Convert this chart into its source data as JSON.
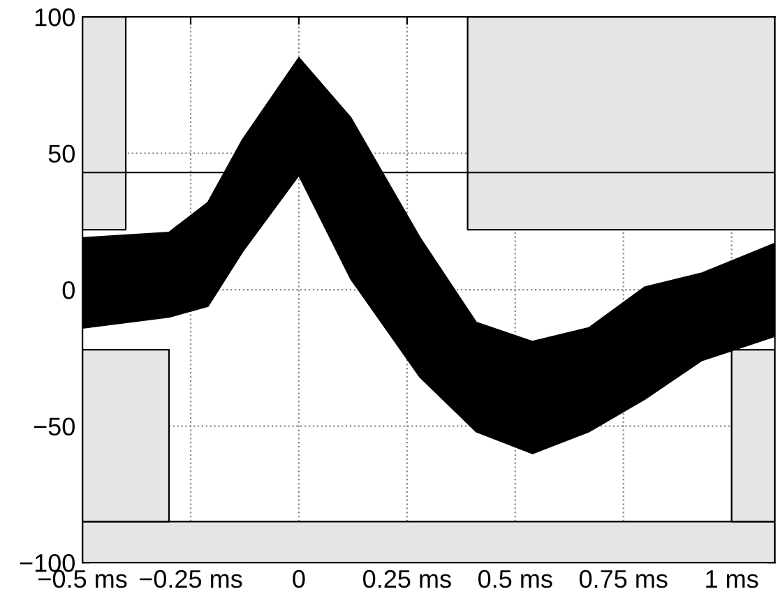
{
  "chart_data": {
    "type": "area",
    "xlim": [
      -0.5,
      1.1
    ],
    "ylim": [
      -100,
      100
    ],
    "xticks": [
      {
        "value": -0.5,
        "label": "−0.5 ms"
      },
      {
        "value": -0.25,
        "label": "−0.25 ms"
      },
      0,
      {
        "value": 0.25,
        "label": "0.25 ms"
      },
      {
        "value": 0.5,
        "label": "0.5 ms"
      },
      {
        "value": 0.75,
        "label": "0.75 ms"
      },
      {
        "value": 1,
        "label": "1 ms"
      }
    ],
    "yticks": [
      {
        "value": -100,
        "label": "−100"
      },
      {
        "value": -50,
        "label": "−50"
      },
      0,
      50,
      100
    ],
    "grid": true,
    "series": [
      {
        "color": "#e5e5e5",
        "x": [
          -0.5,
          -0.4,
          -0.4,
          -0.5
        ],
        "values": [
          100,
          100,
          22,
          22
        ]
      },
      {
        "color": "#e5e5e5",
        "x": [
          -0.5,
          -0.3,
          -0.3,
          -0.5
        ],
        "values": [
          -22,
          -22,
          -85,
          -85
        ]
      },
      {
        "color": "#e5e5e5",
        "x": [
          0.39,
          1.1,
          1.1,
          0.39
        ],
        "values": [
          100,
          100,
          22,
          22
        ]
      },
      {
        "color": "#e5e5e5",
        "x": [
          1.0,
          1.1,
          1.1,
          1.0
        ],
        "values": [
          -22,
          -22,
          -85,
          -85
        ]
      },
      {
        "color": "#000000",
        "x": [
          -0.5,
          -0.3,
          -0.21,
          -0.13,
          0,
          0.12,
          0.28,
          0.41,
          0.54,
          0.67,
          0.8,
          0.93,
          1.1,
          1.1,
          0.93,
          0.8,
          0.67,
          0.54,
          0.41,
          0.28,
          0.12,
          0,
          -0.13,
          -0.21,
          -0.3,
          -0.5
        ],
        "values": [
          19,
          21,
          32,
          55,
          85,
          63,
          19,
          -12,
          -19,
          -14,
          1,
          6,
          17,
          -17,
          -26,
          -40,
          -52,
          -60,
          -52,
          -32,
          4,
          42,
          14,
          -6,
          -10,
          -14
        ]
      }
    ],
    "bands": [
      {
        "axis": "y",
        "from": -100,
        "to": -85,
        "color": "#e5e5e5"
      }
    ],
    "ref_lines": [
      {
        "axis": "y",
        "value": 43,
        "color": "#000000",
        "line_style": "solid"
      }
    ]
  }
}
